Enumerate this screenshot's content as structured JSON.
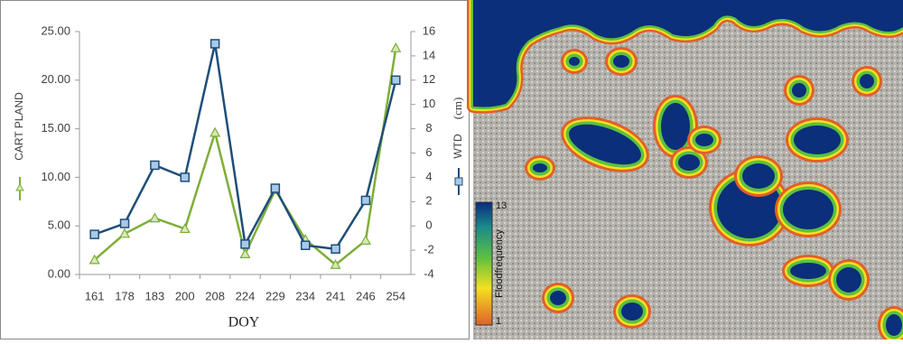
{
  "chart_data": {
    "type": "line",
    "x_label": "DOY",
    "y2_label": "(cm)",
    "categories": [
      "161",
      "178",
      "183",
      "200",
      "208",
      "224",
      "229",
      "234",
      "241",
      "246",
      "254"
    ],
    "series": [
      {
        "name": "CART PLAND",
        "color": "#7fae3a",
        "marker": "triangle",
        "values": [
          1.5,
          4.2,
          5.8,
          4.7,
          14.6,
          2.1,
          8.7,
          3.6,
          1.0,
          3.5,
          23.3
        ]
      },
      {
        "name": "WTD",
        "color": "#1f4e79",
        "marker": "square",
        "axis": "y2",
        "values": [
          -0.7,
          0.2,
          5.0,
          4.0,
          15.0,
          -1.5,
          3.1,
          -1.6,
          -1.9,
          2.1,
          12.0
        ]
      }
    ],
    "ylim": [
      0,
      25
    ],
    "yticks": [
      {
        "value": 0,
        "label": "0.00"
      },
      {
        "value": 5,
        "label": "5.00"
      },
      {
        "value": 10,
        "label": "10.00"
      },
      {
        "value": 15,
        "label": "15.00"
      },
      {
        "value": 20,
        "label": "20.00"
      },
      {
        "value": 25,
        "label": "25.00"
      }
    ],
    "y2lim": [
      -4,
      16
    ],
    "y2ticks": [
      -4,
      -2,
      0,
      2,
      4,
      6,
      8,
      10,
      12,
      14,
      16
    ],
    "grid": false
  },
  "map": {
    "colorbar": {
      "title": "Floodfrequency",
      "ticks": [
        1,
        13
      ]
    }
  }
}
